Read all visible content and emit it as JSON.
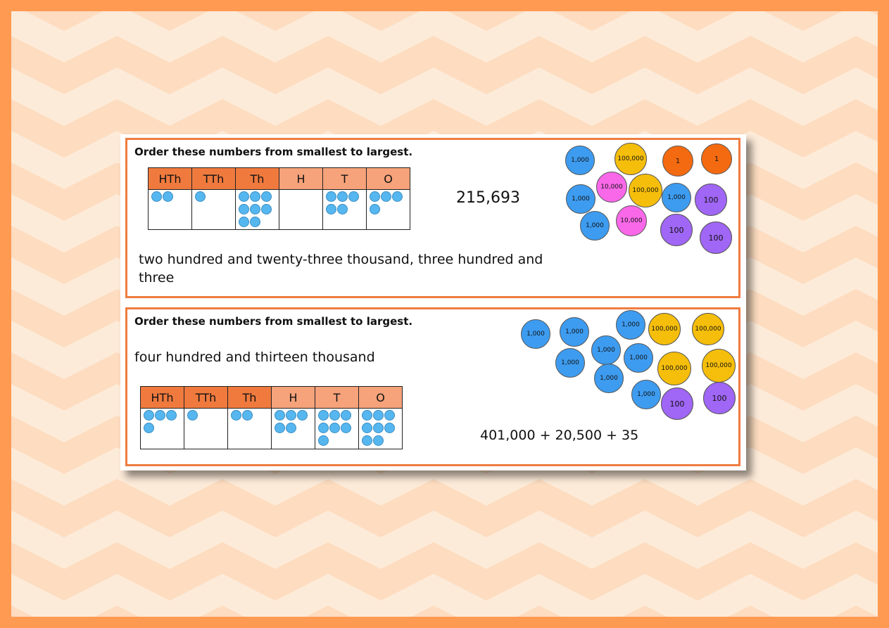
{
  "palette": {
    "page_border": "#ff9a52",
    "background": "#fddcc0",
    "panel_border": "#ef7c40",
    "header_dark": "#f07a3e",
    "header_light": "#f6a27a",
    "counter": "#56b7f0",
    "coin_1000": "#3d9cf0",
    "coin_100000": "#f5be0b",
    "coin_10000": "#f868e8",
    "coin_1": "#f46a10",
    "coin_100": "#a066f5"
  },
  "question1": {
    "heading": "Order these numbers from smallest to largest.",
    "headers": [
      "HTh",
      "TTh",
      "Th",
      "H",
      "T",
      "O"
    ],
    "counters": [
      2,
      1,
      8,
      0,
      5,
      4
    ],
    "number": "215,693",
    "words": "two hundred and twenty-three thousand, three hundred and three",
    "coins": [
      "1,000",
      "100,000",
      "1",
      "1",
      "10,000",
      "100,000",
      "1,000",
      "1,000",
      "100",
      "1,000",
      "10,000",
      "100",
      "100"
    ]
  },
  "question2": {
    "heading": "Order these numbers from smallest to largest.",
    "words": "four hundred and thirteen thousand",
    "headers": [
      "HTh",
      "TTh",
      "Th",
      "H",
      "T",
      "O"
    ],
    "counters": [
      4,
      1,
      2,
      5,
      7,
      8
    ],
    "expression": "401,000 + 20,500 + 35",
    "coins": [
      "1,000",
      "1,000",
      "1,000",
      "100,000",
      "100,000",
      "1,000",
      "1,000",
      "1,000",
      "100,000",
      "100,000",
      "1,000",
      "1,000",
      "100",
      "100"
    ]
  }
}
